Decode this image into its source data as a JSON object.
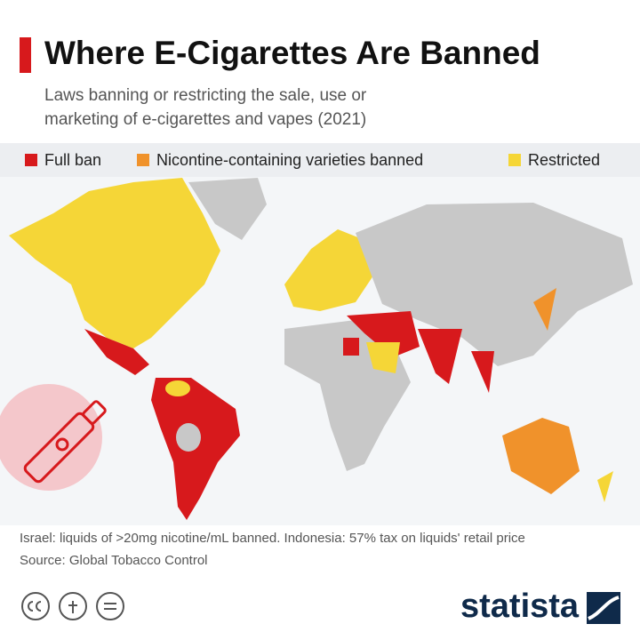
{
  "header": {
    "title": "Where E-Cigarettes Are Banned",
    "subtitle": [
      "Laws banning or restricting the sale, use or",
      "marketing of e-cigarettes and vapes (2021)"
    ]
  },
  "legend": {
    "items": [
      {
        "label": "Full ban",
        "color": "#d7191c"
      },
      {
        "label": "Nicontine-containing varieties banned",
        "color": "#f0922b"
      },
      {
        "label": "Restricted",
        "color": "#f5d637"
      }
    ]
  },
  "footer": {
    "note": "Israel: liquids of >20mg nicotine/mL banned. Indonesia: 57% tax on liquids' retail price",
    "source": "Source: Global Tobacco Control",
    "brand": "statista"
  }
}
